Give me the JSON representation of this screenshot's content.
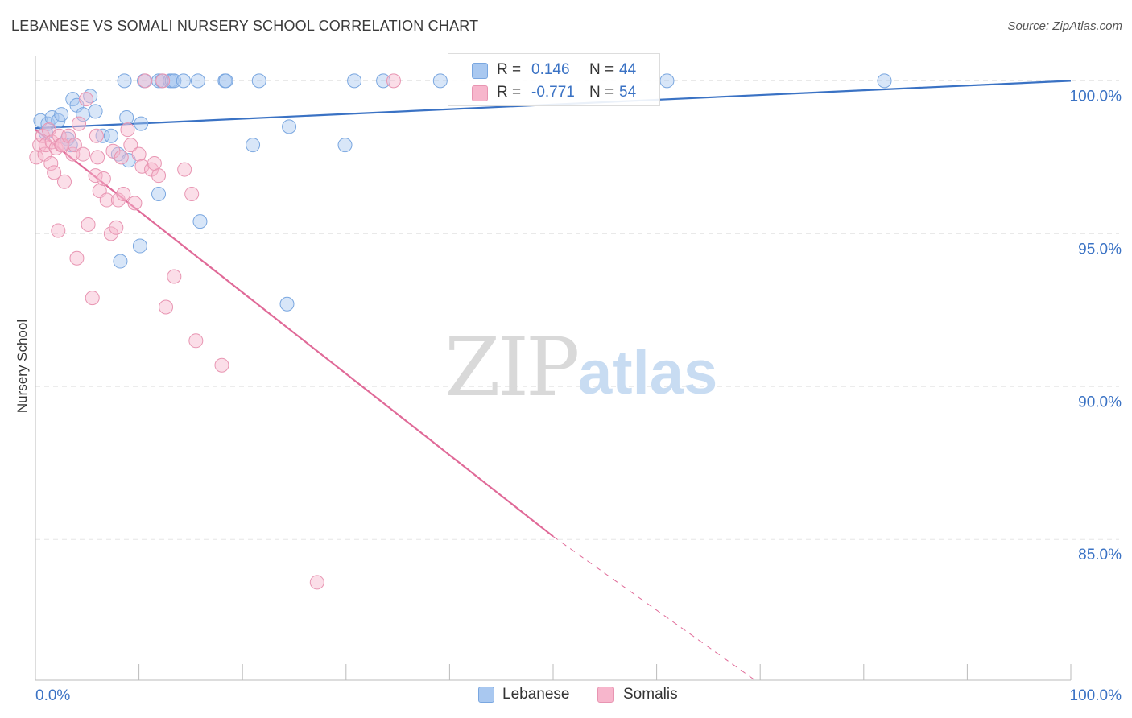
{
  "title": "LEBANESE VS SOMALI NURSERY SCHOOL CORRELATION CHART",
  "source": "Source: ZipAtlas.com",
  "watermark": {
    "zip": "ZIP",
    "atlas": "atlas"
  },
  "legend_box": {
    "rows": [
      {
        "r_label": "R =",
        "r_value": "0.146",
        "n_label": "N =",
        "n_value": "44",
        "color": "#a9c8f0"
      },
      {
        "r_label": "R =",
        "r_value": "-0.771",
        "n_label": "N =",
        "n_value": "54",
        "color": "#f7b6cc"
      }
    ]
  },
  "bottom_legend": {
    "lebanese": "Lebanese",
    "somalis": "Somalis"
  },
  "chart_data": {
    "type": "scatter",
    "title": "LEBANESE VS SOMALI NURSERY SCHOOL CORRELATION CHART",
    "xlabel": "",
    "ylabel": "Nursery School",
    "xlim": [
      0,
      100
    ],
    "ylim": [
      80.4,
      100.8
    ],
    "x_tick_labels": [
      "0.0%",
      "100.0%"
    ],
    "y_ticks": [
      100,
      95,
      90,
      85
    ],
    "y_tick_labels": [
      "100.0%",
      "95.0%",
      "90.0%",
      "85.0%"
    ],
    "grid": true,
    "legend_position": "top-center",
    "colors": {
      "lebanese": "#3a72c4",
      "lebanese_fill": "#a9c8f0",
      "somalis": "#e06a98",
      "somalis_fill": "#f7b6cc",
      "axis_label": "#3a72c4"
    },
    "series": [
      {
        "name": "Lebanese",
        "x": [
          0.5,
          1.0,
          1.2,
          1.6,
          2.2,
          2.5,
          3.1,
          3.4,
          3.6,
          4.0,
          4.6,
          5.3,
          5.8,
          6.5,
          7.3,
          8.0,
          8.2,
          8.6,
          8.8,
          9.0,
          10.1,
          10.2,
          10.5,
          11.9,
          11.9,
          12.2,
          13.0,
          13.2,
          13.4,
          14.3,
          15.7,
          15.9,
          18.3,
          18.4,
          21.0,
          21.6,
          24.3,
          24.5,
          29.9,
          30.8,
          33.6,
          39.1,
          61.0,
          82.0
        ],
        "y": [
          98.7,
          98.3,
          98.6,
          98.8,
          98.7,
          98.9,
          98.1,
          97.9,
          99.4,
          99.2,
          98.9,
          99.5,
          99.0,
          98.2,
          98.2,
          97.6,
          94.1,
          100.0,
          98.8,
          97.4,
          94.6,
          98.6,
          100.0,
          100.0,
          96.3,
          100.0,
          100.0,
          100.0,
          100.0,
          100.0,
          100.0,
          95.4,
          100.0,
          100.0,
          97.9,
          100.0,
          92.7,
          98.5,
          97.9,
          100.0,
          100.0,
          100.0,
          100.0,
          100.0
        ]
      },
      {
        "name": "Somalis",
        "x": [
          0.1,
          0.4,
          0.7,
          0.9,
          1.0,
          1.3,
          1.5,
          1.6,
          1.8,
          2.0,
          2.2,
          2.3,
          2.5,
          2.6,
          2.8,
          3.2,
          3.6,
          3.8,
          4.0,
          4.2,
          4.6,
          4.9,
          5.1,
          5.5,
          5.8,
          5.9,
          6.0,
          6.2,
          6.6,
          6.9,
          7.3,
          7.5,
          7.8,
          8.0,
          8.3,
          8.5,
          8.9,
          9.2,
          9.6,
          10.0,
          10.3,
          10.6,
          11.2,
          11.5,
          11.9,
          12.3,
          12.6,
          13.4,
          14.4,
          15.1,
          15.5,
          18.0,
          27.2,
          34.6
        ],
        "y": [
          97.5,
          97.9,
          98.2,
          97.6,
          97.9,
          98.4,
          97.3,
          98.0,
          97.0,
          97.8,
          95.1,
          98.2,
          97.9,
          97.9,
          96.7,
          98.2,
          97.6,
          97.9,
          94.2,
          98.6,
          97.6,
          99.4,
          95.3,
          92.9,
          96.9,
          98.2,
          97.5,
          96.4,
          96.8,
          96.1,
          95.0,
          97.7,
          95.2,
          96.1,
          97.5,
          96.3,
          98.4,
          97.9,
          96.0,
          97.6,
          97.2,
          100.0,
          97.1,
          97.3,
          96.9,
          100.0,
          92.6,
          93.6,
          97.1,
          96.3,
          91.5,
          90.7,
          83.6,
          100.0
        ]
      }
    ],
    "trend_lines": [
      {
        "name": "Lebanese",
        "x": [
          0,
          100
        ],
        "y": [
          98.45,
          100.0
        ],
        "style": "solid"
      },
      {
        "name": "Somalis",
        "x": [
          0,
          50
        ],
        "y": [
          98.4,
          85.1
        ],
        "style": "solid"
      },
      {
        "name": "Somalis (extrapolated)",
        "x": [
          50,
          69.5
        ],
        "y": [
          85.1,
          80.4
        ],
        "style": "dashed"
      }
    ]
  }
}
